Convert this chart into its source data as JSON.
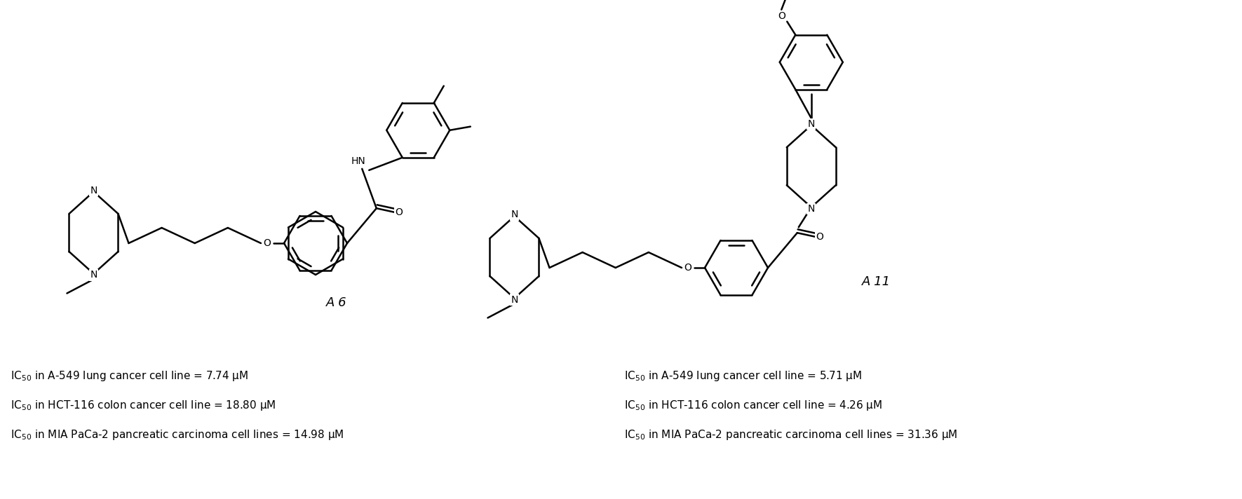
{
  "background_color": "#ffffff",
  "fig_width": 17.71,
  "fig_height": 7.12,
  "lw": 1.8,
  "lc": "#000000",
  "font_size_label": 13,
  "font_size_ic50": 11,
  "font_size_atom": 10,
  "compound_A6": {
    "label": "A 6",
    "ic50_lines": [
      "IC$_{50}$ in A-549 lung cancer cell line = 7.74 μM",
      "IC$_{50}$ in HCT-116 colon cancer cell line = 18.80 μM",
      "IC$_{50}$ in MIA PaCa-2 pancreatic carcinoma cell lines = 14.98 μM"
    ]
  },
  "compound_A11": {
    "label": "A 11",
    "ic50_lines": [
      "IC$_{50}$ in A-549 lung cancer cell line = 5.71 μM",
      "IC$_{50}$ in HCT-116 colon cancer cell line = 4.26 μM",
      "IC$_{50}$ in MIA PaCa-2 pancreatic carcinoma cell lines = 31.36 μM"
    ]
  }
}
